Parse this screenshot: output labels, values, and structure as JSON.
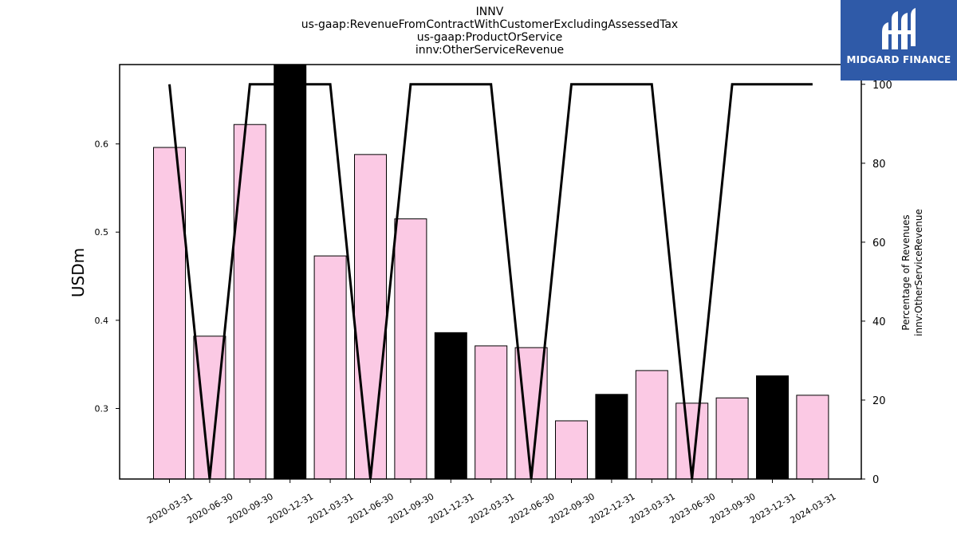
{
  "title_lines": [
    "INNV",
    "us-gaap:RevenueFromContractWithCustomerExcludingAssessedTax",
    "us-gaap:ProductOrService",
    "innv:OtherServiceRevenue"
  ],
  "logo": {
    "text": "MIDGARD FINANCE",
    "background": "#2f5aa8"
  },
  "chart_data": {
    "type": "bar",
    "categories": [
      "2020-03-31",
      "2020-06-30",
      "2020-09-30",
      "2020-12-31",
      "2021-03-31",
      "2021-06-30",
      "2021-09-30",
      "2021-12-31",
      "2022-03-31",
      "2022-06-30",
      "2022-09-30",
      "2022-12-31",
      "2023-03-31",
      "2023-06-30",
      "2023-09-30",
      "2023-12-31",
      "2024-03-31"
    ],
    "series": [
      {
        "axis": "left",
        "type": "bar",
        "values": [
          0.596,
          0.382,
          0.622,
          0.69,
          0.473,
          0.588,
          0.515,
          0.386,
          0.371,
          0.369,
          0.286,
          0.316,
          0.343,
          0.306,
          0.312,
          0.337,
          0.315
        ],
        "colors": [
          "#fbc9e4",
          "#fbc9e4",
          "#fbc9e4",
          "#000000",
          "#fbc9e4",
          "#fbc9e4",
          "#fbc9e4",
          "#000000",
          "#fbc9e4",
          "#fbc9e4",
          "#fbc9e4",
          "#000000",
          "#fbc9e4",
          "#fbc9e4",
          "#fbc9e4",
          "#000000",
          "#fbc9e4"
        ]
      },
      {
        "axis": "right",
        "type": "line",
        "color": "#000000",
        "values": [
          100,
          0,
          100,
          100,
          100,
          0,
          100,
          100,
          100,
          0,
          100,
          100,
          100,
          0,
          100,
          100,
          100
        ]
      }
    ],
    "ylabel": "USDm",
    "ylim": [
      0.22,
      0.69
    ],
    "yticks": [
      0.3,
      0.4,
      0.5,
      0.6
    ],
    "ytick_labels": [
      "0.3",
      "0.4",
      "0.5",
      "0.6"
    ],
    "y2label_lines": [
      "Percentage of Revenues",
      "innv:OtherServiceRevenue"
    ],
    "y2lim": [
      0,
      105
    ],
    "y2ticks": [
      0,
      20,
      40,
      60,
      80,
      100
    ],
    "y2tick_labels": [
      "0",
      "20",
      "40",
      "60",
      "80",
      "100"
    ],
    "grid": false,
    "legend": "none"
  }
}
